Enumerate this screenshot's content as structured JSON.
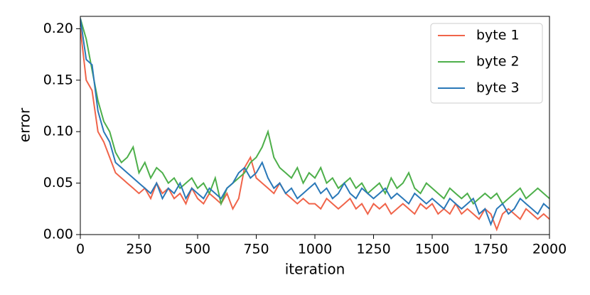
{
  "chart_data": {
    "type": "line",
    "xlabel": "iteration",
    "ylabel": "error",
    "x": [
      0,
      25,
      50,
      75,
      100,
      125,
      150,
      175,
      200,
      225,
      250,
      275,
      300,
      325,
      350,
      375,
      400,
      425,
      450,
      475,
      500,
      525,
      550,
      575,
      600,
      625,
      650,
      675,
      700,
      725,
      750,
      775,
      800,
      825,
      850,
      875,
      900,
      925,
      950,
      975,
      1000,
      1025,
      1050,
      1075,
      1100,
      1125,
      1150,
      1175,
      1200,
      1225,
      1250,
      1275,
      1300,
      1325,
      1350,
      1375,
      1400,
      1425,
      1450,
      1475,
      1500,
      1525,
      1550,
      1575,
      1600,
      1625,
      1650,
      1675,
      1700,
      1725,
      1750,
      1775,
      1800,
      1825,
      1850,
      1875,
      1900,
      1925,
      1950,
      1975,
      2000
    ],
    "series": [
      {
        "name": "byte 1",
        "color": "#f0644a",
        "values": [
          0.2,
          0.15,
          0.14,
          0.1,
          0.09,
          0.075,
          0.06,
          0.055,
          0.05,
          0.045,
          0.04,
          0.045,
          0.035,
          0.05,
          0.04,
          0.045,
          0.035,
          0.04,
          0.03,
          0.045,
          0.035,
          0.03,
          0.04,
          0.035,
          0.03,
          0.04,
          0.025,
          0.035,
          0.065,
          0.075,
          0.055,
          0.05,
          0.045,
          0.04,
          0.05,
          0.04,
          0.035,
          0.03,
          0.035,
          0.03,
          0.03,
          0.025,
          0.035,
          0.03,
          0.025,
          0.03,
          0.035,
          0.025,
          0.03,
          0.02,
          0.03,
          0.025,
          0.03,
          0.02,
          0.025,
          0.03,
          0.025,
          0.02,
          0.03,
          0.025,
          0.03,
          0.02,
          0.025,
          0.02,
          0.03,
          0.02,
          0.025,
          0.02,
          0.015,
          0.025,
          0.02,
          0.005,
          0.02,
          0.025,
          0.02,
          0.015,
          0.025,
          0.02,
          0.015,
          0.02,
          0.015
        ]
      },
      {
        "name": "byte 2",
        "color": "#4daf4a",
        "values": [
          0.21,
          0.19,
          0.16,
          0.13,
          0.11,
          0.1,
          0.08,
          0.07,
          0.075,
          0.085,
          0.06,
          0.07,
          0.055,
          0.065,
          0.06,
          0.05,
          0.055,
          0.045,
          0.05,
          0.055,
          0.045,
          0.05,
          0.04,
          0.055,
          0.03,
          0.045,
          0.05,
          0.055,
          0.06,
          0.07,
          0.075,
          0.085,
          0.1,
          0.075,
          0.065,
          0.06,
          0.055,
          0.065,
          0.05,
          0.06,
          0.055,
          0.065,
          0.05,
          0.055,
          0.045,
          0.05,
          0.055,
          0.045,
          0.05,
          0.04,
          0.045,
          0.05,
          0.04,
          0.055,
          0.045,
          0.05,
          0.06,
          0.045,
          0.04,
          0.05,
          0.045,
          0.04,
          0.035,
          0.045,
          0.04,
          0.035,
          0.04,
          0.03,
          0.035,
          0.04,
          0.035,
          0.04,
          0.03,
          0.035,
          0.04,
          0.045,
          0.035,
          0.04,
          0.045,
          0.04,
          0.035
        ]
      },
      {
        "name": "byte 3",
        "color": "#2a78b8",
        "values": [
          0.21,
          0.17,
          0.165,
          0.12,
          0.1,
          0.09,
          0.07,
          0.065,
          0.06,
          0.055,
          0.05,
          0.045,
          0.04,
          0.05,
          0.035,
          0.045,
          0.04,
          0.05,
          0.035,
          0.045,
          0.04,
          0.035,
          0.045,
          0.04,
          0.035,
          0.045,
          0.05,
          0.06,
          0.065,
          0.055,
          0.06,
          0.07,
          0.055,
          0.045,
          0.05,
          0.04,
          0.045,
          0.035,
          0.04,
          0.045,
          0.05,
          0.04,
          0.045,
          0.035,
          0.04,
          0.05,
          0.04,
          0.035,
          0.045,
          0.04,
          0.035,
          0.04,
          0.045,
          0.035,
          0.04,
          0.035,
          0.03,
          0.04,
          0.035,
          0.03,
          0.035,
          0.03,
          0.025,
          0.035,
          0.03,
          0.025,
          0.03,
          0.035,
          0.02,
          0.025,
          0.01,
          0.025,
          0.03,
          0.02,
          0.025,
          0.035,
          0.03,
          0.025,
          0.02,
          0.03,
          0.025
        ]
      }
    ],
    "xlim": [
      0,
      2000
    ],
    "xticks": [
      0,
      250,
      500,
      750,
      1000,
      1250,
      1500,
      1750,
      2000
    ],
    "ylim": [
      0,
      0.212
    ],
    "yticks": [
      {
        "value": 0,
        "label": "0.00"
      },
      0.05,
      {
        "value": 0.1,
        "label": "0.10"
      },
      0.15,
      {
        "value": 0.2,
        "label": "0.20"
      }
    ],
    "legend": "upper right"
  }
}
